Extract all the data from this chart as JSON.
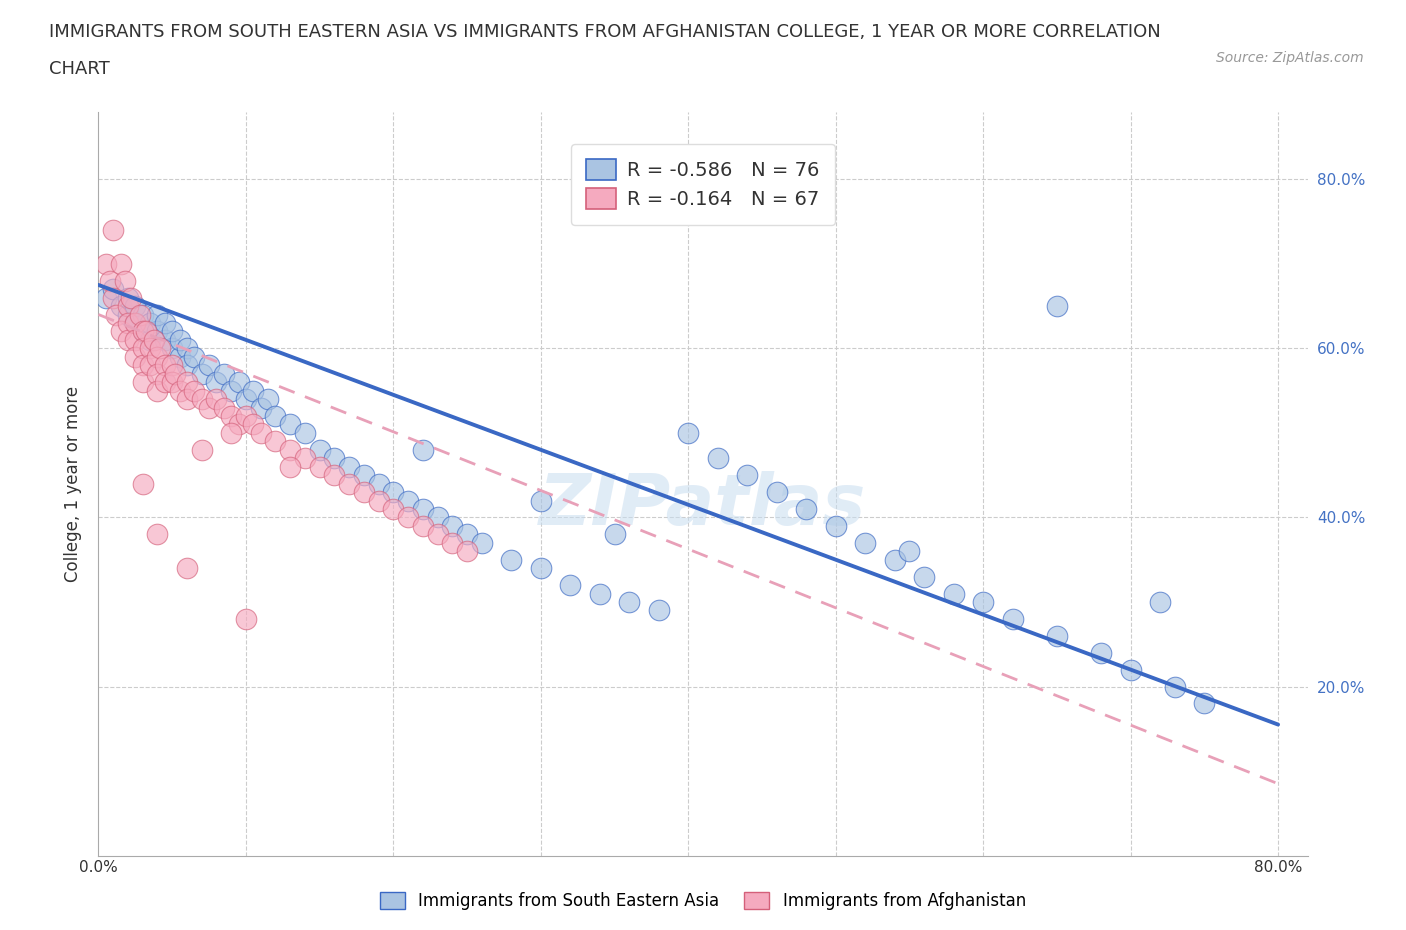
{
  "title_line1": "IMMIGRANTS FROM SOUTH EASTERN ASIA VS IMMIGRANTS FROM AFGHANISTAN COLLEGE, 1 YEAR OR MORE CORRELATION",
  "title_line2": "CHART",
  "source_text": "Source: ZipAtlas.com",
  "ylabel": "College, 1 year or more",
  "xlim": [
    0.0,
    0.82
  ],
  "ylim": [
    0.0,
    0.88
  ],
  "legend_r1": "-0.586",
  "legend_n1": "76",
  "legend_r2": "-0.164",
  "legend_n2": "67",
  "color_sea": "#aac4e2",
  "color_afg": "#f5aabf",
  "line_color_sea": "#3a68c4",
  "line_color_afg": "#e8a0b8",
  "background_color": "#ffffff",
  "grid_color": "#cccccc",
  "title_fontsize": 13,
  "axis_label_fontsize": 12,
  "tick_fontsize": 11,
  "sea_x": [
    0.005,
    0.01,
    0.015,
    0.02,
    0.02,
    0.025,
    0.025,
    0.03,
    0.03,
    0.035,
    0.035,
    0.04,
    0.04,
    0.045,
    0.045,
    0.05,
    0.05,
    0.055,
    0.055,
    0.06,
    0.06,
    0.065,
    0.07,
    0.075,
    0.08,
    0.085,
    0.09,
    0.095,
    0.1,
    0.105,
    0.11,
    0.115,
    0.12,
    0.13,
    0.14,
    0.15,
    0.16,
    0.17,
    0.18,
    0.19,
    0.2,
    0.21,
    0.22,
    0.23,
    0.24,
    0.25,
    0.26,
    0.28,
    0.3,
    0.32,
    0.34,
    0.36,
    0.38,
    0.4,
    0.42,
    0.44,
    0.46,
    0.48,
    0.5,
    0.52,
    0.54,
    0.56,
    0.58,
    0.6,
    0.62,
    0.65,
    0.68,
    0.7,
    0.73,
    0.75,
    0.3,
    0.35,
    0.22,
    0.55,
    0.72,
    0.65
  ],
  "sea_y": [
    0.66,
    0.67,
    0.65,
    0.64,
    0.66,
    0.63,
    0.65,
    0.62,
    0.64,
    0.61,
    0.63,
    0.62,
    0.64,
    0.61,
    0.63,
    0.6,
    0.62,
    0.59,
    0.61,
    0.6,
    0.58,
    0.59,
    0.57,
    0.58,
    0.56,
    0.57,
    0.55,
    0.56,
    0.54,
    0.55,
    0.53,
    0.54,
    0.52,
    0.51,
    0.5,
    0.48,
    0.47,
    0.46,
    0.45,
    0.44,
    0.43,
    0.42,
    0.41,
    0.4,
    0.39,
    0.38,
    0.37,
    0.35,
    0.34,
    0.32,
    0.31,
    0.3,
    0.29,
    0.5,
    0.47,
    0.45,
    0.43,
    0.41,
    0.39,
    0.37,
    0.35,
    0.33,
    0.31,
    0.3,
    0.28,
    0.26,
    0.24,
    0.22,
    0.2,
    0.18,
    0.42,
    0.38,
    0.48,
    0.36,
    0.3,
    0.65
  ],
  "afg_x": [
    0.005,
    0.008,
    0.01,
    0.01,
    0.012,
    0.015,
    0.015,
    0.018,
    0.02,
    0.02,
    0.02,
    0.022,
    0.025,
    0.025,
    0.025,
    0.028,
    0.03,
    0.03,
    0.03,
    0.03,
    0.032,
    0.035,
    0.035,
    0.038,
    0.04,
    0.04,
    0.04,
    0.042,
    0.045,
    0.045,
    0.05,
    0.05,
    0.052,
    0.055,
    0.06,
    0.06,
    0.065,
    0.07,
    0.075,
    0.08,
    0.085,
    0.09,
    0.095,
    0.1,
    0.105,
    0.11,
    0.12,
    0.13,
    0.14,
    0.15,
    0.16,
    0.17,
    0.18,
    0.19,
    0.2,
    0.21,
    0.22,
    0.23,
    0.24,
    0.25,
    0.13,
    0.09,
    0.07,
    0.04,
    0.03,
    0.06,
    0.1
  ],
  "afg_y": [
    0.7,
    0.68,
    0.74,
    0.66,
    0.64,
    0.7,
    0.62,
    0.68,
    0.65,
    0.63,
    0.61,
    0.66,
    0.63,
    0.61,
    0.59,
    0.64,
    0.62,
    0.6,
    0.58,
    0.56,
    0.62,
    0.6,
    0.58,
    0.61,
    0.59,
    0.57,
    0.55,
    0.6,
    0.58,
    0.56,
    0.58,
    0.56,
    0.57,
    0.55,
    0.56,
    0.54,
    0.55,
    0.54,
    0.53,
    0.54,
    0.53,
    0.52,
    0.51,
    0.52,
    0.51,
    0.5,
    0.49,
    0.48,
    0.47,
    0.46,
    0.45,
    0.44,
    0.43,
    0.42,
    0.41,
    0.4,
    0.39,
    0.38,
    0.37,
    0.36,
    0.46,
    0.5,
    0.48,
    0.38,
    0.44,
    0.34,
    0.28
  ],
  "sea_trend_x": [
    0.0,
    0.8
  ],
  "sea_trend_y": [
    0.675,
    0.155
  ],
  "afg_trend_x": [
    0.0,
    0.8
  ],
  "afg_trend_y": [
    0.64,
    0.085
  ]
}
